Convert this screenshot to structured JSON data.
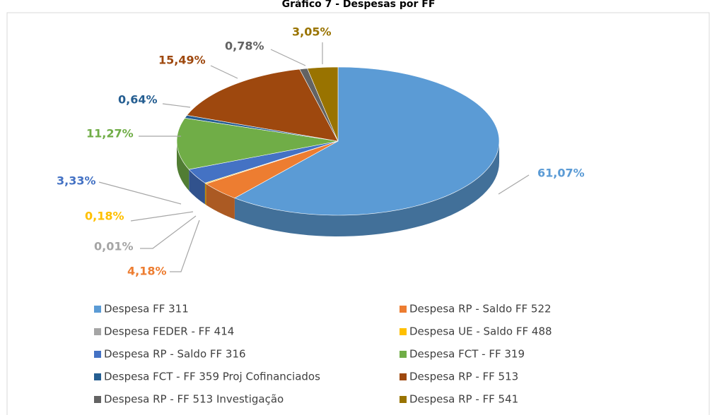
{
  "chart_data": {
    "type": "pie",
    "title": "Gráfico 7 - Despesas por FF",
    "series": [
      {
        "name": "Despesa FF 311",
        "color": "#5b9bd5",
        "values": [
          61.07
        ],
        "value_labels": [
          "61,07%"
        ]
      },
      {
        "name": "Despesa RP - Saldo FF 522",
        "color": "#ed7d31",
        "values": [
          4.18
        ],
        "value_labels": [
          "4,18%"
        ]
      },
      {
        "name": "Despesa FEDER -  FF 414",
        "color": "#a5a5a5",
        "values": [
          0.01
        ],
        "value_labels": [
          "0,01%"
        ]
      },
      {
        "name": "Despesa UE - Saldo FF 488",
        "color": "#ffc000",
        "values": [
          0.18
        ],
        "value_labels": [
          "0,18%"
        ]
      },
      {
        "name": "Despesa RP - Saldo FF 316",
        "color": "#4472c4",
        "values": [
          3.33
        ],
        "value_labels": [
          "3,33%"
        ]
      },
      {
        "name": "Despesa FCT -  FF 319",
        "color": "#70ad47",
        "values": [
          11.27
        ],
        "value_labels": [
          "11,27%"
        ]
      },
      {
        "name": "Despesa FCT -  FF 359 Proj Cofinanciados",
        "color": "#255e91",
        "values": [
          0.64
        ],
        "value_labels": [
          "0,64%"
        ]
      },
      {
        "name": "Despesa RP -  FF 513",
        "color": "#9e480e",
        "values": [
          15.49
        ],
        "value_labels": [
          "15,49%"
        ]
      },
      {
        "name": "Despesa RP -  FF 513 Investigação",
        "color": "#636363",
        "values": [
          0.78
        ],
        "value_labels": [
          "0,78%"
        ]
      },
      {
        "name": "Despesa RP -  FF 541",
        "color": "#997300",
        "values": [
          3.05
        ],
        "value_labels": [
          "3,05%"
        ]
      }
    ]
  }
}
